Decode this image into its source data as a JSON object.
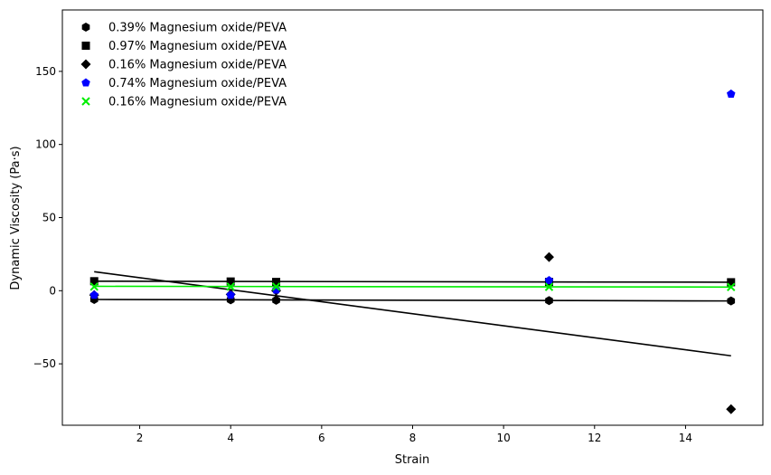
{
  "chart_data": {
    "type": "scatter",
    "xlabel": "Strain",
    "ylabel": "Dynamic Viscosity (Pa·s)",
    "xlim": [
      0.3,
      15.7
    ],
    "ylim": [
      -92,
      192
    ],
    "x_ticks": [
      2,
      4,
      6,
      8,
      10,
      12,
      14
    ],
    "y_ticks": [
      -50,
      0,
      50,
      100,
      150
    ],
    "y_tick_labels": [
      "−50",
      "0",
      "50",
      "100",
      "150"
    ],
    "grid": false,
    "legend_position": "top-left",
    "series": [
      {
        "name": "0.39% Magnesium oxide/PEVA",
        "marker": "hexagon",
        "color": "#000000",
        "x": [
          1,
          4,
          5,
          11,
          15
        ],
        "y": [
          -6,
          -6.2,
          -6.5,
          -6.8,
          -7
        ],
        "fit": [
          [
            1,
            -6
          ],
          [
            15,
            -7
          ]
        ]
      },
      {
        "name": "0.97% Magnesium oxide/PEVA",
        "marker": "square",
        "color": "#000000",
        "x": [
          1,
          4,
          5,
          11,
          15
        ],
        "y": [
          6.5,
          6.3,
          6,
          6,
          5.8
        ],
        "fit": [
          [
            1,
            6.5
          ],
          [
            15,
            5.8
          ]
        ]
      },
      {
        "name": "0.16% Magnesium oxide/PEVA",
        "marker": "diamond",
        "color": "#000000",
        "x": [
          1,
          4,
          5,
          11,
          15
        ],
        "y": [
          -3,
          -2.5,
          0,
          23,
          -81
        ],
        "fit": [
          [
            1,
            13
          ],
          [
            15,
            -44.5
          ]
        ]
      },
      {
        "name": "0.74% Magnesium oxide/PEVA",
        "marker": "pentagon",
        "color": "#0000ff",
        "x": [
          1,
          4,
          5,
          11,
          15
        ],
        "y": [
          -3,
          -3,
          0.5,
          7,
          134.5
        ],
        "fit": null
      },
      {
        "name": "0.16% Magnesium oxide/PEVA",
        "marker": "x",
        "color": "#00ee00",
        "x": [
          1,
          4,
          5,
          11,
          15
        ],
        "y": [
          2.8,
          2.8,
          2.8,
          2.6,
          2.5
        ],
        "fit": [
          [
            1,
            3
          ],
          [
            15,
            2.5
          ]
        ]
      }
    ]
  }
}
